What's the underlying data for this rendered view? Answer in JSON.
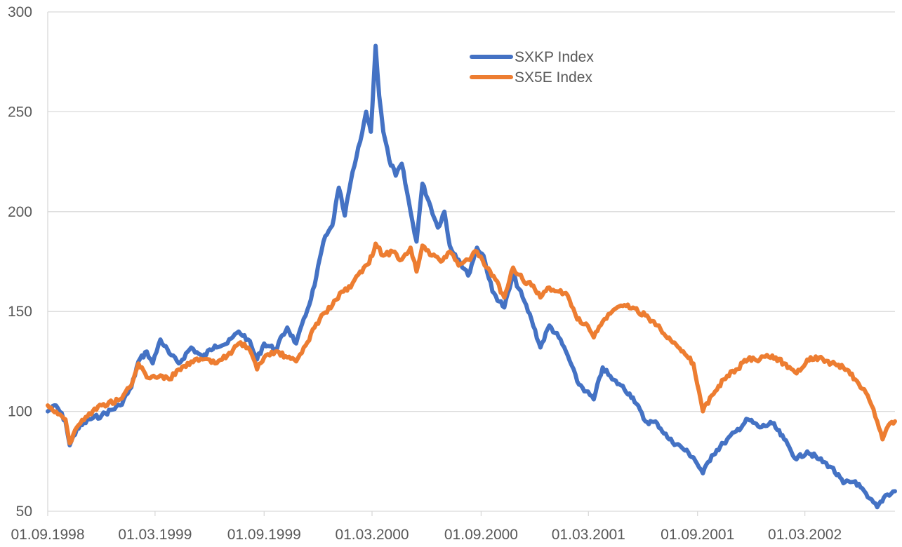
{
  "chart_data": {
    "type": "line",
    "title": "",
    "xlabel": "",
    "ylabel": "",
    "ylim": [
      50,
      300
    ],
    "y_ticks": [
      50,
      100,
      150,
      200,
      250,
      300
    ],
    "x_ticks": [
      "01.09.1998",
      "01.03.1999",
      "01.09.1999",
      "01.03.2000",
      "01.09.2000",
      "01.03.2001",
      "01.09.2001",
      "01.03.2002"
    ],
    "x_range": [
      "1998-09-01",
      "2002-07-31"
    ],
    "grid": "horizontal",
    "legend_position": "top-center",
    "series": [
      {
        "name": "SXKP Index",
        "color": "#4472c4",
        "points": [
          [
            "1998-09-01",
            100
          ],
          [
            "1998-09-15",
            103
          ],
          [
            "1998-10-01",
            95
          ],
          [
            "1998-10-08",
            83
          ],
          [
            "1998-10-20",
            91
          ],
          [
            "1998-11-10",
            96
          ],
          [
            "1998-12-01",
            98
          ],
          [
            "1999-01-01",
            103
          ],
          [
            "1999-01-20",
            112
          ],
          [
            "1999-02-01",
            125
          ],
          [
            "1999-02-15",
            130
          ],
          [
            "1999-02-25",
            124
          ],
          [
            "1999-03-10",
            136
          ],
          [
            "1999-03-25",
            129
          ],
          [
            "1999-04-10",
            124
          ],
          [
            "1999-05-01",
            132
          ],
          [
            "1999-05-20",
            127
          ],
          [
            "1999-06-10",
            133
          ],
          [
            "1999-07-01",
            134
          ],
          [
            "1999-07-20",
            140
          ],
          [
            "1999-08-05",
            136
          ],
          [
            "1999-08-20",
            126
          ],
          [
            "1999-09-01",
            134
          ],
          [
            "1999-09-20",
            131
          ],
          [
            "1999-10-10",
            142
          ],
          [
            "1999-10-25",
            134
          ],
          [
            "1999-11-10",
            148
          ],
          [
            "1999-11-25",
            163
          ],
          [
            "1999-12-10",
            185
          ],
          [
            "1999-12-25",
            193
          ],
          [
            "2000-01-05",
            212
          ],
          [
            "2000-01-15",
            198
          ],
          [
            "2000-01-25",
            215
          ],
          [
            "2000-02-10",
            235
          ],
          [
            "2000-02-20",
            250
          ],
          [
            "2000-02-28",
            240
          ],
          [
            "2000-03-07",
            283
          ],
          [
            "2000-03-13",
            258
          ],
          [
            "2000-03-20",
            240
          ],
          [
            "2000-03-30",
            226
          ],
          [
            "2000-04-10",
            218
          ],
          [
            "2000-04-20",
            224
          ],
          [
            "2000-05-05",
            200
          ],
          [
            "2000-05-15",
            185
          ],
          [
            "2000-05-25",
            214
          ],
          [
            "2000-06-05",
            205
          ],
          [
            "2000-06-20",
            192
          ],
          [
            "2000-07-01",
            200
          ],
          [
            "2000-07-10",
            183
          ],
          [
            "2000-07-25",
            176
          ],
          [
            "2000-08-10",
            168
          ],
          [
            "2000-08-25",
            182
          ],
          [
            "2000-09-05",
            178
          ],
          [
            "2000-09-20",
            160
          ],
          [
            "2000-10-10",
            152
          ],
          [
            "2000-10-25",
            168
          ],
          [
            "2000-11-10",
            157
          ],
          [
            "2000-11-25",
            146
          ],
          [
            "2000-12-10",
            132
          ],
          [
            "2000-12-25",
            143
          ],
          [
            "2001-01-10",
            137
          ],
          [
            "2001-01-25",
            128
          ],
          [
            "2001-02-10",
            115
          ],
          [
            "2001-02-25",
            110
          ],
          [
            "2001-03-10",
            106
          ],
          [
            "2001-03-25",
            122
          ],
          [
            "2001-04-10",
            116
          ],
          [
            "2001-04-25",
            113
          ],
          [
            "2001-05-15",
            107
          ],
          [
            "2001-06-05",
            95
          ],
          [
            "2001-06-25",
            94
          ],
          [
            "2001-07-15",
            86
          ],
          [
            "2001-08-05",
            82
          ],
          [
            "2001-08-25",
            77
          ],
          [
            "2001-09-10",
            69
          ],
          [
            "2001-09-25",
            78
          ],
          [
            "2001-10-15",
            84
          ],
          [
            "2001-11-05",
            90
          ],
          [
            "2001-11-25",
            96
          ],
          [
            "2001-12-15",
            92
          ],
          [
            "2002-01-05",
            94
          ],
          [
            "2002-01-25",
            86
          ],
          [
            "2002-02-15",
            76
          ],
          [
            "2002-03-05",
            80
          ],
          [
            "2002-03-25",
            76
          ],
          [
            "2002-04-15",
            72
          ],
          [
            "2002-05-05",
            64
          ],
          [
            "2002-05-25",
            65
          ],
          [
            "2002-06-15",
            57
          ],
          [
            "2002-07-01",
            52
          ],
          [
            "2002-07-15",
            58
          ],
          [
            "2002-07-31",
            60
          ]
        ]
      },
      {
        "name": "SX5E Index",
        "color": "#ed7d31",
        "points": [
          [
            "1998-09-01",
            103
          ],
          [
            "1998-09-15",
            100
          ],
          [
            "1998-10-01",
            96
          ],
          [
            "1998-10-08",
            84
          ],
          [
            "1998-10-20",
            92
          ],
          [
            "1998-11-10",
            99
          ],
          [
            "1998-12-01",
            103
          ],
          [
            "1999-01-01",
            106
          ],
          [
            "1999-01-20",
            113
          ],
          [
            "1999-02-01",
            124
          ],
          [
            "1999-02-15",
            117
          ],
          [
            "1999-03-10",
            118
          ],
          [
            "1999-03-25",
            116
          ],
          [
            "1999-04-10",
            121
          ],
          [
            "1999-05-01",
            125
          ],
          [
            "1999-05-20",
            126
          ],
          [
            "1999-06-10",
            124
          ],
          [
            "1999-07-01",
            128
          ],
          [
            "1999-07-20",
            134
          ],
          [
            "1999-08-05",
            132
          ],
          [
            "1999-08-20",
            121
          ],
          [
            "1999-09-01",
            127
          ],
          [
            "1999-09-20",
            130
          ],
          [
            "1999-10-10",
            127
          ],
          [
            "1999-10-25",
            125
          ],
          [
            "1999-11-10",
            133
          ],
          [
            "1999-11-25",
            142
          ],
          [
            "1999-12-10",
            149
          ],
          [
            "1999-12-25",
            153
          ],
          [
            "2000-01-10",
            160
          ],
          [
            "2000-01-25",
            162
          ],
          [
            "2000-02-10",
            170
          ],
          [
            "2000-02-25",
            174
          ],
          [
            "2000-03-07",
            184
          ],
          [
            "2000-03-20",
            178
          ],
          [
            "2000-04-05",
            180
          ],
          [
            "2000-04-20",
            176
          ],
          [
            "2000-05-05",
            182
          ],
          [
            "2000-05-15",
            170
          ],
          [
            "2000-05-25",
            183
          ],
          [
            "2000-06-10",
            178
          ],
          [
            "2000-06-25",
            175
          ],
          [
            "2000-07-10",
            180
          ],
          [
            "2000-07-25",
            173
          ],
          [
            "2000-08-10",
            176
          ],
          [
            "2000-08-25",
            180
          ],
          [
            "2000-09-10",
            172
          ],
          [
            "2000-09-25",
            166
          ],
          [
            "2000-10-10",
            157
          ],
          [
            "2000-10-25",
            172
          ],
          [
            "2000-11-10",
            166
          ],
          [
            "2000-11-25",
            163
          ],
          [
            "2000-12-10",
            157
          ],
          [
            "2000-12-25",
            162
          ],
          [
            "2001-01-10",
            160
          ],
          [
            "2001-01-25",
            158
          ],
          [
            "2001-02-10",
            146
          ],
          [
            "2001-02-25",
            144
          ],
          [
            "2001-03-10",
            137
          ],
          [
            "2001-03-25",
            145
          ],
          [
            "2001-04-10",
            150
          ],
          [
            "2001-04-25",
            153
          ],
          [
            "2001-05-15",
            152
          ],
          [
            "2001-06-05",
            148
          ],
          [
            "2001-06-25",
            143
          ],
          [
            "2001-07-15",
            137
          ],
          [
            "2001-08-05",
            130
          ],
          [
            "2001-08-25",
            124
          ],
          [
            "2001-09-10",
            100
          ],
          [
            "2001-09-25",
            108
          ],
          [
            "2001-10-15",
            116
          ],
          [
            "2001-11-05",
            121
          ],
          [
            "2001-11-25",
            126
          ],
          [
            "2001-12-15",
            126
          ],
          [
            "2002-01-05",
            128
          ],
          [
            "2002-01-25",
            124
          ],
          [
            "2002-02-15",
            119
          ],
          [
            "2002-03-05",
            126
          ],
          [
            "2002-03-25",
            127
          ],
          [
            "2002-04-15",
            124
          ],
          [
            "2002-05-05",
            122
          ],
          [
            "2002-05-25",
            116
          ],
          [
            "2002-06-15",
            108
          ],
          [
            "2002-07-01",
            95
          ],
          [
            "2002-07-10",
            86
          ],
          [
            "2002-07-20",
            93
          ],
          [
            "2002-07-31",
            95
          ]
        ]
      }
    ]
  }
}
